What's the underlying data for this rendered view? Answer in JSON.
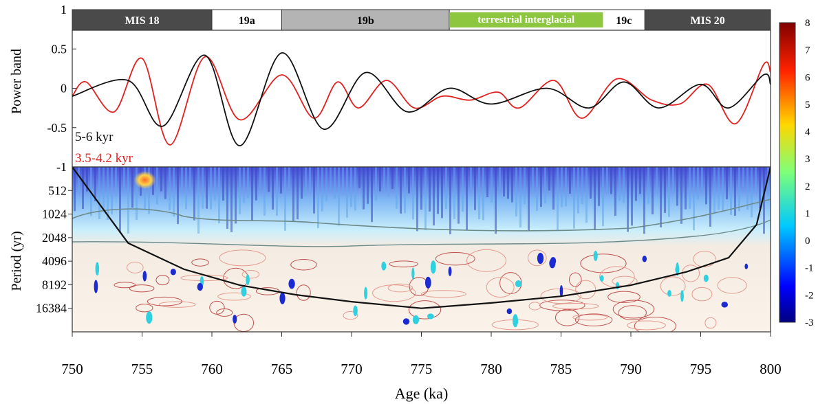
{
  "chart_data": [
    {
      "type": "line",
      "title": "",
      "xlabel": "",
      "ylabel": "Power band",
      "xlim": [
        750,
        800
      ],
      "ylim": [
        -1,
        1
      ],
      "y_ticks": [
        1,
        0.5,
        0,
        -0.5,
        -1
      ],
      "y_tick_labels": [
        "1",
        "0.5",
        "0",
        "-0.5",
        "-1"
      ],
      "stage_bands": [
        {
          "label": "MIS 18",
          "start": 750,
          "end": 760,
          "color": "#4a4a4a",
          "text_color": "#ffffff"
        },
        {
          "label": "19a",
          "start": 760,
          "end": 765,
          "color": "#ffffff",
          "text_color": "#000000"
        },
        {
          "label": "19b",
          "start": 765,
          "end": 777,
          "color": "#b4b4b4",
          "text_color": "#000000"
        },
        {
          "label": "19c",
          "start": 777,
          "end": 791,
          "color": "#ffffff",
          "text_color": "#000000"
        },
        {
          "label": "MIS 20",
          "start": 791,
          "end": 800,
          "color": "#4a4a4a",
          "text_color": "#ffffff"
        }
      ],
      "interglacial_band": {
        "label": "terrestrial interglacial",
        "start": 777,
        "end": 788,
        "color": "#8dc63f",
        "text_color": "#ffffff"
      },
      "series": [
        {
          "name": "5-6 kyr",
          "color": "#111111",
          "points": [
            [
              750,
              -0.1
            ],
            [
              754,
              0.1
            ],
            [
              756.5,
              -0.48
            ],
            [
              759.5,
              0.42
            ],
            [
              762,
              -0.73
            ],
            [
              765,
              0.45
            ],
            [
              768,
              -0.52
            ],
            [
              771,
              0.2
            ],
            [
              774,
              -0.3
            ],
            [
              777,
              0.0
            ],
            [
              780,
              -0.2
            ],
            [
              784,
              0.0
            ],
            [
              787,
              -0.25
            ],
            [
              789.5,
              0.08
            ],
            [
              792,
              -0.25
            ],
            [
              795,
              0.05
            ],
            [
              797,
              -0.25
            ],
            [
              799.5,
              0.17
            ],
            [
              800,
              0.05
            ]
          ]
        },
        {
          "name": "3.5-4.2 kyr",
          "color": "#e0201e",
          "points": [
            [
              750,
              -0.1
            ],
            [
              751,
              0.08
            ],
            [
              753,
              -0.3
            ],
            [
              755,
              0.38
            ],
            [
              757,
              -0.72
            ],
            [
              759.5,
              0.4
            ],
            [
              762,
              -0.4
            ],
            [
              765,
              0.17
            ],
            [
              767.3,
              -0.38
            ],
            [
              769,
              0.08
            ],
            [
              770.5,
              -0.25
            ],
            [
              772.5,
              0.1
            ],
            [
              774.5,
              -0.25
            ],
            [
              776.5,
              -0.1
            ],
            [
              778.5,
              -0.15
            ],
            [
              780.5,
              -0.05
            ],
            [
              782,
              -0.25
            ],
            [
              784.5,
              0.1
            ],
            [
              786.5,
              -0.38
            ],
            [
              789,
              0.12
            ],
            [
              791.5,
              -0.15
            ],
            [
              793.5,
              -0.2
            ],
            [
              795.5,
              0.05
            ],
            [
              797.5,
              -0.45
            ],
            [
              799.5,
              0.3
            ],
            [
              800,
              0.2
            ]
          ]
        }
      ]
    },
    {
      "type": "heatmap",
      "title": "",
      "xlabel": "Age (ka)",
      "ylabel": "Period (yr)",
      "xlim": [
        750,
        800
      ],
      "x_ticks": [
        750,
        755,
        760,
        765,
        770,
        775,
        780,
        785,
        790,
        795,
        800
      ],
      "y_scale": "log2",
      "ylim_period": [
        256,
        32768
      ],
      "y_ticks": [
        512,
        1024,
        2048,
        4096,
        8192,
        16384
      ],
      "colorbar": {
        "min": -3,
        "max": 8,
        "ticks": [
          8,
          7,
          6,
          5,
          4,
          3,
          2,
          1,
          0,
          -1,
          -2,
          -3
        ]
      },
      "cone_of_influence": [
        [
          750,
          256
        ],
        [
          754,
          2400
        ],
        [
          758,
          5200
        ],
        [
          762,
          8300
        ],
        [
          766,
          11000
        ],
        [
          770,
          13500
        ],
        [
          775,
          16384
        ],
        [
          780,
          14000
        ],
        [
          785,
          11500
        ],
        [
          790,
          8300
        ],
        [
          794,
          5600
        ],
        [
          797,
          3700
        ],
        [
          799,
          1400
        ],
        [
          800,
          256
        ]
      ]
    }
  ]
}
